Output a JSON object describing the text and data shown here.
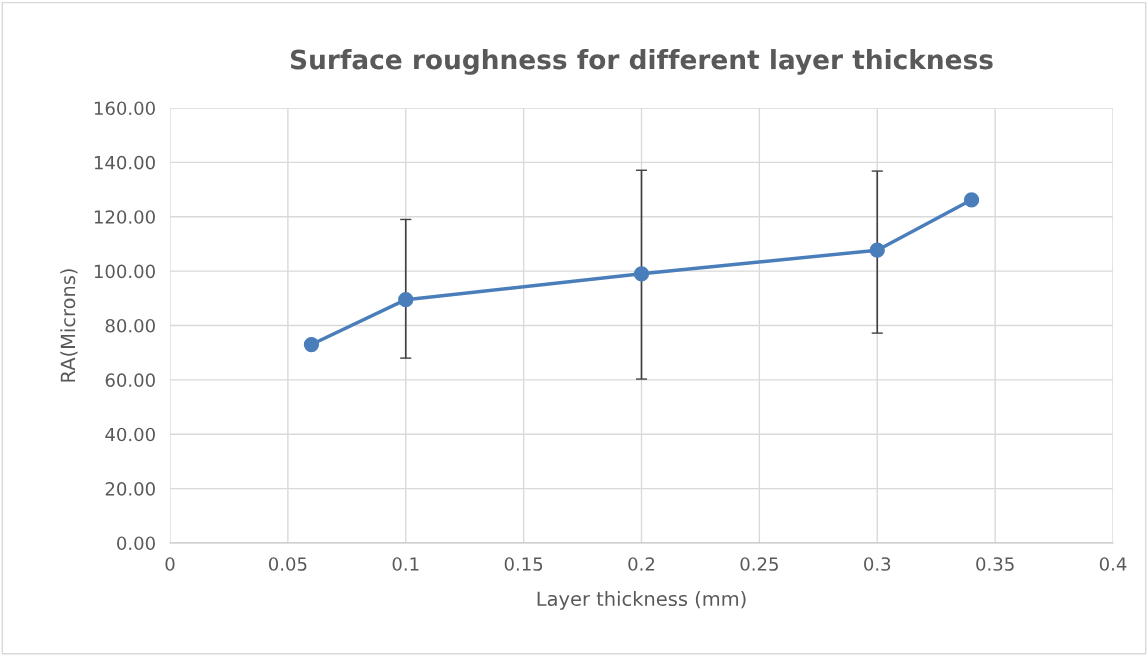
{
  "chart_data": {
    "type": "line",
    "title": "Surface roughness for different layer thickness",
    "xlabel": "Layer thickness (mm)",
    "ylabel": "RA(Microns)",
    "x": [
      0.06,
      0.1,
      0.2,
      0.3,
      0.34
    ],
    "series": [
      {
        "color": "#4a7ebb",
        "values": [
          73,
          89.5,
          99,
          107.7,
          126.2
        ],
        "errors": [
          null,
          [
            68,
            119
          ],
          [
            60.3,
            137.1
          ],
          [
            77.2,
            136.8
          ],
          null
        ]
      }
    ],
    "xlim": [
      0,
      0.4
    ],
    "xticks": [
      {
        "value": 0,
        "label": "0"
      },
      0.05,
      0.1,
      0.15,
      0.2,
      0.25,
      0.3,
      0.35,
      0.4
    ],
    "ylim": [
      0,
      160
    ],
    "yticks": [
      {
        "value": 0,
        "label": "0.00"
      },
      {
        "value": 20,
        "label": "20.00"
      },
      {
        "value": 40,
        "label": "40.00"
      },
      {
        "value": 60,
        "label": "60.00"
      },
      {
        "value": 80,
        "label": "80.00"
      },
      {
        "value": 100,
        "label": "100.00"
      },
      {
        "value": 120,
        "label": "120.00"
      },
      {
        "value": 140,
        "label": "140.00"
      },
      {
        "value": 160,
        "label": "160.00"
      }
    ],
    "grid": true,
    "marker": "circle",
    "line_style": "solid"
  }
}
